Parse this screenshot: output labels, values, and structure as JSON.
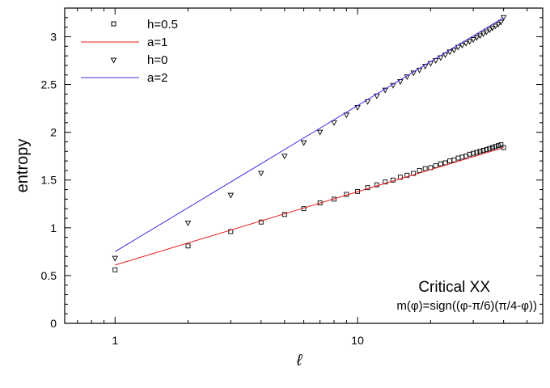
{
  "chart_data": {
    "type": "scatter",
    "xlabel": "ℓ",
    "ylabel": "entropy",
    "xscale": "log",
    "xlim": [
      0.62,
      58
    ],
    "ylim": [
      0,
      3.3
    ],
    "xticks": [
      {
        "value": 1,
        "label": "1"
      },
      {
        "value": 10,
        "label": "10"
      }
    ],
    "yticks": [
      {
        "value": 0,
        "label": "0"
      },
      {
        "value": 0.5,
        "label": "0.5"
      },
      {
        "value": 1,
        "label": "1"
      },
      {
        "value": 1.5,
        "label": "1.5"
      },
      {
        "value": 2,
        "label": "2"
      },
      {
        "value": 2.5,
        "label": "2.5"
      },
      {
        "value": 3,
        "label": "3"
      }
    ],
    "series": [
      {
        "name": "h=0.5",
        "kind": "markers",
        "marker": "square",
        "color": "#000000",
        "x": [
          1,
          2,
          3,
          4,
          5,
          6,
          7,
          8,
          9,
          10,
          11,
          12,
          13,
          14,
          15,
          16,
          17,
          18,
          19,
          20,
          21,
          22,
          23,
          24,
          25,
          26,
          27,
          28,
          29,
          30,
          31,
          32,
          33,
          34,
          35,
          36,
          37,
          38,
          39,
          40
        ],
        "y": [
          0.56,
          0.81,
          0.96,
          1.06,
          1.14,
          1.2,
          1.26,
          1.3,
          1.35,
          1.38,
          1.42,
          1.45,
          1.48,
          1.5,
          1.53,
          1.55,
          1.57,
          1.6,
          1.62,
          1.63,
          1.65,
          1.67,
          1.68,
          1.7,
          1.71,
          1.73,
          1.74,
          1.75,
          1.77,
          1.78,
          1.79,
          1.8,
          1.81,
          1.82,
          1.83,
          1.84,
          1.85,
          1.86,
          1.87,
          1.84
        ]
      },
      {
        "name": "a=1",
        "kind": "line",
        "color": "#e8191c",
        "x": [
          1,
          40
        ],
        "y": [
          0.61,
          1.84
        ]
      },
      {
        "name": "h=0",
        "kind": "markers",
        "marker": "triangle-down",
        "color": "#000000",
        "x": [
          1,
          2,
          3,
          4,
          5,
          6,
          7,
          8,
          9,
          10,
          11,
          12,
          13,
          14,
          15,
          16,
          17,
          18,
          19,
          20,
          21,
          22,
          23,
          24,
          25,
          26,
          27,
          28,
          29,
          30,
          31,
          32,
          33,
          34,
          35,
          36,
          37,
          38,
          39,
          40
        ],
        "y": [
          0.68,
          1.05,
          1.34,
          1.57,
          1.75,
          1.89,
          2.0,
          2.1,
          2.18,
          2.26,
          2.32,
          2.38,
          2.44,
          2.49,
          2.53,
          2.58,
          2.62,
          2.65,
          2.69,
          2.72,
          2.75,
          2.78,
          2.81,
          2.84,
          2.86,
          2.89,
          2.91,
          2.93,
          2.95,
          2.97,
          2.99,
          3.01,
          3.03,
          3.05,
          3.07,
          3.09,
          3.11,
          3.13,
          3.15,
          3.2
        ]
      },
      {
        "name": "a=2",
        "kind": "line",
        "color": "#3a2fe0",
        "x": [
          1,
          40
        ],
        "y": [
          0.75,
          3.2
        ]
      }
    ],
    "legend_position": "top-left",
    "annotations": {
      "title": "Critical XX",
      "subtitle": "m(φ)=sign((φ-π/6)(π/4-φ))",
      "position": "bottom-right"
    }
  }
}
